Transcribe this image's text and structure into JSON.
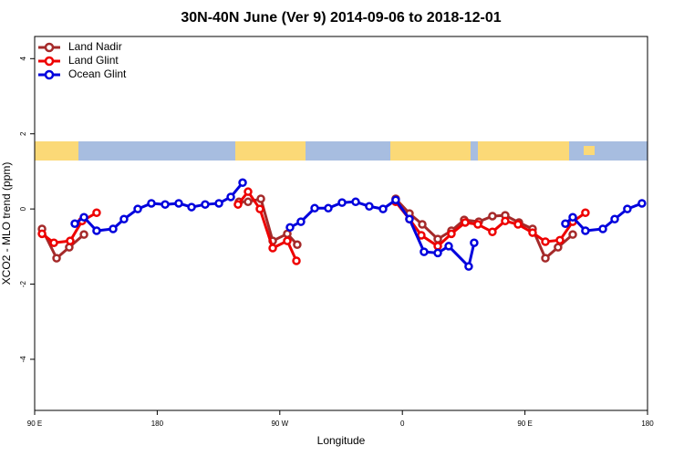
{
  "chart_data": {
    "type": "line",
    "title": "30N-40N June (Ver 9)   2014-09-06 to 2018-12-01",
    "x_label": "Longitude",
    "y_label": "XCO2 - MLO trend (ppm)",
    "xlim": [
      90,
      540
    ],
    "ylim": [
      -5.36,
      4.59
    ],
    "xticks": [
      {
        "value": 90,
        "label": "90 E"
      },
      180,
      {
        "value": 270,
        "label": "90 W"
      },
      {
        "value": 360,
        "label": "0"
      },
      {
        "value": 450,
        "label": "90 E"
      },
      {
        "value": 540,
        "label": "180"
      }
    ],
    "yticks": [
      4,
      2,
      0,
      -2,
      -4
    ],
    "legend": "top-left",
    "series": [
      {
        "name": "Land Nadir",
        "color": "#a52a2a",
        "x": [
          95.4,
          106.1,
          115.4,
          126.2,
          null,
          240,
          246.7,
          256.1,
          264.8,
          275.5,
          282.8,
          null,
          355.1,
          365.2,
          374.6,
          386,
          396,
          405.4,
          416.1,
          426.1,
          435.5,
          445.6,
          455.6,
          465,
          474.3,
          485.1
        ],
        "values": [
          -0.53,
          -1.31,
          -1.02,
          -0.68,
          null,
          0.19,
          0.19,
          0.27,
          -0.85,
          -0.66,
          -0.95,
          null,
          0.27,
          -0.12,
          -0.41,
          -0.8,
          -0.58,
          -0.29,
          -0.34,
          -0.19,
          -0.17,
          -0.36,
          -0.53,
          -1.31,
          -1.02,
          -0.68
        ]
      },
      {
        "name": "Land Glint",
        "color": "#ee0000",
        "x": [
          95.4,
          104.1,
          116.1,
          124.8,
          135.5,
          null,
          239.3,
          246.7,
          255.4,
          264.8,
          275.5,
          282.2,
          null,
          355.1,
          365.2,
          373.9,
          386,
          396,
          406.1,
          415.4,
          426.1,
          435.5,
          444.9,
          455.6,
          465,
          475.7,
          485.1,
          494.4
        ],
        "values": [
          -0.66,
          -0.9,
          -0.85,
          -0.32,
          -0.1,
          null,
          0.12,
          0.46,
          0,
          -1.04,
          -0.85,
          -1.38,
          null,
          0.19,
          -0.27,
          -0.7,
          -0.99,
          -0.66,
          -0.36,
          -0.41,
          -0.61,
          -0.32,
          -0.41,
          -0.63,
          -0.87,
          -0.83,
          -0.34,
          -0.1
        ]
      },
      {
        "name": "Ocean Glint",
        "color": "#0000dd",
        "x": [
          119.5,
          126.2,
          135.5,
          147.6,
          155.6,
          165.7,
          175.7,
          185.8,
          195.8,
          205.2,
          215.2,
          225.3,
          234,
          242.7,
          null,
          277.5,
          285.5,
          295.6,
          305.6,
          315.7,
          325.7,
          335.7,
          345.8,
          355.1,
          365.2,
          375.9,
          386,
          394,
          408.7,
          412.7,
          null,
          479.7,
          485.1,
          494.4,
          507.2,
          515.9,
          525.2,
          535.9
        ],
        "values": [
          -0.39,
          -0.22,
          -0.58,
          -0.53,
          -0.27,
          0,
          0.15,
          0.12,
          0.15,
          0.05,
          0.12,
          0.15,
          0.32,
          0.7,
          null,
          -0.49,
          -0.34,
          0.02,
          0.02,
          0.17,
          0.19,
          0.07,
          0,
          0.24,
          -0.27,
          -1.14,
          -1.17,
          -0.99,
          -1.53,
          -0.9,
          null,
          -0.39,
          -0.22,
          -0.58,
          -0.53,
          -0.27,
          0,
          0.15
        ]
      }
    ]
  }
}
